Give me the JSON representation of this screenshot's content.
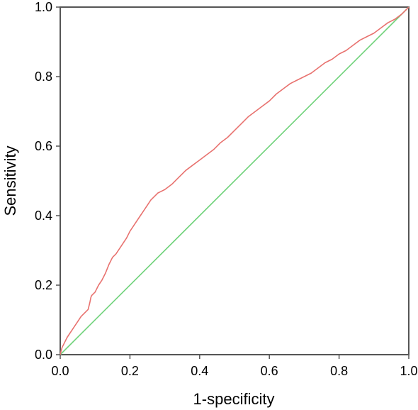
{
  "chart_data": {
    "type": "line",
    "title": "",
    "xlabel": "1-specificity",
    "ylabel": "Sensitivity",
    "xlim": [
      0,
      1
    ],
    "ylim": [
      0,
      1
    ],
    "x_ticks": [
      "0.0",
      "0.2",
      "0.4",
      "0.6",
      "0.8",
      "1.0"
    ],
    "y_ticks": [
      "0.0",
      "0.2",
      "0.4",
      "0.6",
      "0.8",
      "1.0"
    ],
    "grid": false,
    "legend": "none",
    "series": [
      {
        "color": "#e8726f",
        "x": [
          0,
          0.005,
          0.01,
          0.02,
          0.03,
          0.04,
          0.05,
          0.06,
          0.07,
          0.08,
          0.085,
          0.088,
          0.09,
          0.1,
          0.11,
          0.12,
          0.13,
          0.14,
          0.15,
          0.16,
          0.17,
          0.18,
          0.19,
          0.2,
          0.21,
          0.22,
          0.23,
          0.24,
          0.25,
          0.26,
          0.27,
          0.28,
          0.29,
          0.3,
          0.32,
          0.34,
          0.36,
          0.38,
          0.4,
          0.42,
          0.44,
          0.46,
          0.48,
          0.5,
          0.52,
          0.54,
          0.56,
          0.58,
          0.6,
          0.62,
          0.64,
          0.66,
          0.68,
          0.7,
          0.72,
          0.74,
          0.76,
          0.78,
          0.8,
          0.82,
          0.84,
          0.86,
          0.88,
          0.9,
          0.92,
          0.94,
          0.96,
          0.98,
          0.99,
          1.0
        ],
        "y": [
          0,
          0.02,
          0.03,
          0.05,
          0.065,
          0.08,
          0.095,
          0.11,
          0.12,
          0.13,
          0.15,
          0.165,
          0.17,
          0.18,
          0.2,
          0.215,
          0.235,
          0.26,
          0.28,
          0.29,
          0.305,
          0.32,
          0.335,
          0.355,
          0.37,
          0.385,
          0.4,
          0.415,
          0.43,
          0.445,
          0.455,
          0.465,
          0.47,
          0.475,
          0.49,
          0.51,
          0.53,
          0.545,
          0.56,
          0.575,
          0.59,
          0.61,
          0.625,
          0.645,
          0.665,
          0.685,
          0.7,
          0.715,
          0.73,
          0.75,
          0.765,
          0.78,
          0.79,
          0.8,
          0.81,
          0.825,
          0.84,
          0.85,
          0.865,
          0.875,
          0.89,
          0.905,
          0.915,
          0.925,
          0.94,
          0.955,
          0.965,
          0.98,
          0.99,
          1.0
        ]
      },
      {
        "color": "#6fd27a",
        "x": [
          0,
          1
        ],
        "y": [
          0,
          1
        ]
      }
    ]
  }
}
